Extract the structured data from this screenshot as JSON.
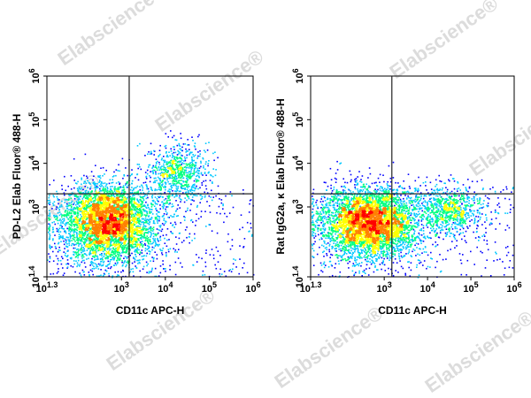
{
  "watermark": "Elabscience®",
  "chart_data": [
    {
      "type": "scatter",
      "title": "",
      "xlabel": "CD11c APC-H",
      "ylabel": "PD-L2 Elab Fluor® 488-H",
      "xscale": "log",
      "yscale": "log",
      "xlim": [
        20,
        1000000
      ],
      "ylim": [
        25,
        1000000
      ],
      "xticks": [
        {
          "base": "10",
          "exp": "1.3"
        },
        {
          "base": "10",
          "exp": "3"
        },
        {
          "base": "10",
          "exp": "4"
        },
        {
          "base": "10",
          "exp": "5"
        },
        {
          "base": "10",
          "exp": "6"
        }
      ],
      "yticks": [
        {
          "base": "10",
          "exp": "1.4"
        },
        {
          "base": "10",
          "exp": "3"
        },
        {
          "base": "10",
          "exp": "4"
        },
        {
          "base": "10",
          "exp": "5"
        },
        {
          "base": "10",
          "exp": "6"
        }
      ],
      "gate": {
        "x": 1500,
        "y": 2000
      },
      "populations": [
        {
          "name": "main",
          "center": [
            500,
            450
          ],
          "spread_decades": [
            0.55,
            0.45
          ],
          "weight": 0.8
        },
        {
          "name": "high",
          "center": [
            20000,
            6000
          ],
          "spread_decades": [
            0.35,
            0.35
          ],
          "weight": 0.14
        }
      ],
      "density_colors": [
        "#0000ff",
        "#00c8ff",
        "#00ff80",
        "#ffff00",
        "#ff8000",
        "#ff0000"
      ]
    },
    {
      "type": "scatter",
      "title": "",
      "xlabel": "CD11c APC-H",
      "ylabel": "Rat IgG2a, κ Elab Fluor® 488-H",
      "xscale": "log",
      "yscale": "log",
      "xlim": [
        20,
        1000000
      ],
      "ylim": [
        25,
        1000000
      ],
      "xticks": [
        {
          "base": "10",
          "exp": "1.3"
        },
        {
          "base": "10",
          "exp": "3"
        },
        {
          "base": "10",
          "exp": "4"
        },
        {
          "base": "10",
          "exp": "5"
        },
        {
          "base": "10",
          "exp": "6"
        }
      ],
      "yticks": [
        {
          "base": "10",
          "exp": "1.4"
        },
        {
          "base": "10",
          "exp": "3"
        },
        {
          "base": "10",
          "exp": "4"
        },
        {
          "base": "10",
          "exp": "5"
        },
        {
          "base": "10",
          "exp": "6"
        }
      ],
      "gate": {
        "x": 1500,
        "y": 2000
      },
      "populations": [
        {
          "name": "main",
          "center": [
            450,
            450
          ],
          "spread_decades": [
            0.55,
            0.4
          ],
          "weight": 0.8
        },
        {
          "name": "right",
          "center": [
            30000,
            900
          ],
          "spread_decades": [
            0.4,
            0.28
          ],
          "weight": 0.14
        }
      ],
      "density_colors": [
        "#0000ff",
        "#00c8ff",
        "#00ff80",
        "#ffff00",
        "#ff8000",
        "#ff0000"
      ]
    }
  ]
}
